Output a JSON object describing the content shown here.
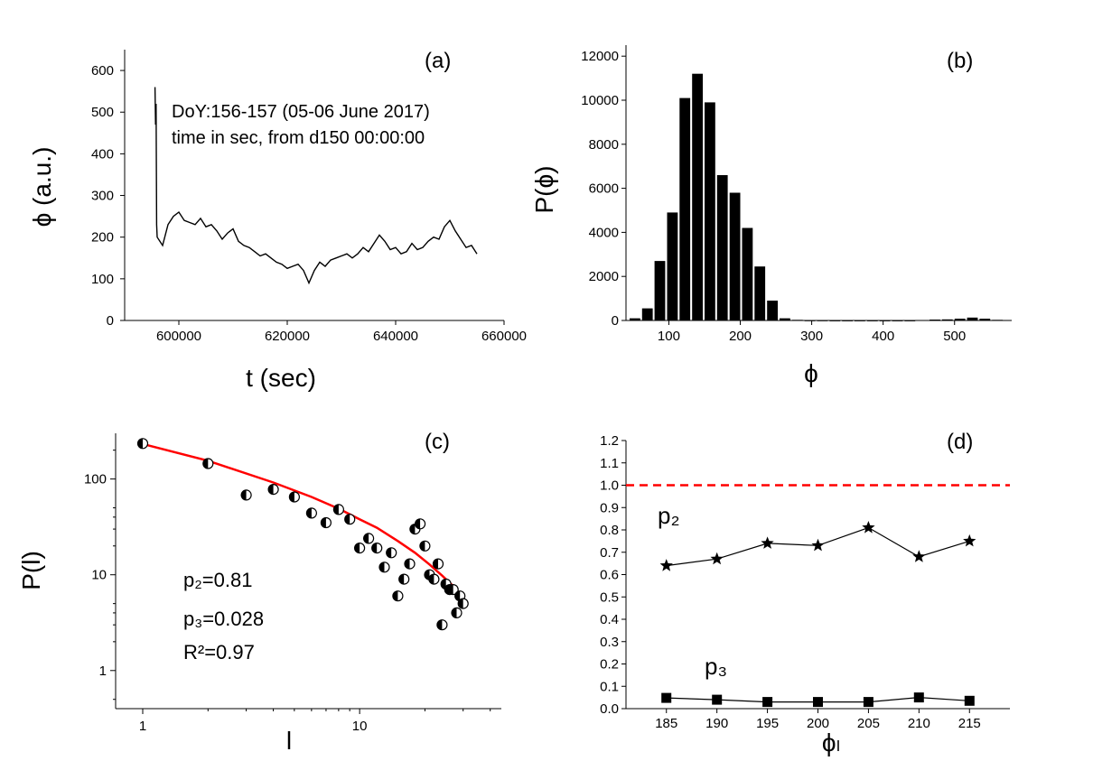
{
  "chart_data": [
    {
      "panel_label": "(a)",
      "type": "line",
      "xlabel": "t (sec)",
      "ylabel": "ϕ (a.u.)",
      "xlim": [
        590000,
        660000
      ],
      "ylim": [
        0,
        650
      ],
      "xticks": [
        600000,
        620000,
        640000,
        660000
      ],
      "yticks": [
        0,
        100,
        200,
        300,
        400,
        500,
        600
      ],
      "annotations": [
        "DoY:156-157 (05-06 June 2017)",
        "time in sec, from d150 00:00:00"
      ],
      "series": [
        {
          "x": [
            595600,
            595700,
            595800,
            595900,
            596000,
            597000,
            598000,
            599000,
            600000,
            601000,
            602000,
            603000,
            604000,
            605000,
            606000,
            607000,
            608000,
            609000,
            610000,
            611000,
            612000,
            613000,
            614000,
            615000,
            616000,
            617000,
            618000,
            619000,
            620000,
            621000,
            622000,
            623000,
            624000,
            625000,
            626000,
            627000,
            628000,
            629000,
            630000,
            631000,
            632000,
            633000,
            634000,
            635000,
            636000,
            637000,
            638000,
            639000,
            640000,
            641000,
            642000,
            643000,
            644000,
            645000,
            646000,
            647000,
            648000,
            649000,
            650000,
            651000,
            652000,
            653000,
            654000,
            655000
          ],
          "y": [
            560,
            470,
            520,
            230,
            200,
            180,
            230,
            250,
            260,
            240,
            235,
            230,
            245,
            225,
            230,
            215,
            195,
            210,
            220,
            190,
            180,
            175,
            165,
            155,
            160,
            150,
            140,
            135,
            125,
            130,
            135,
            120,
            90,
            120,
            140,
            130,
            145,
            150,
            155,
            160,
            150,
            160,
            175,
            165,
            185,
            205,
            190,
            170,
            175,
            160,
            165,
            185,
            170,
            175,
            190,
            200,
            195,
            225,
            240,
            215,
            195,
            175,
            180,
            160
          ]
        }
      ]
    },
    {
      "panel_label": "(b)",
      "type": "bar",
      "xlabel": "ϕ",
      "ylabel": "P(ϕ)",
      "xlim": [
        40,
        580
      ],
      "ylim": [
        0,
        12500
      ],
      "xticks": [
        100,
        200,
        300,
        400,
        500
      ],
      "yticks": [
        0,
        2000,
        4000,
        6000,
        8000,
        10000,
        12000
      ],
      "bin_width": 17.5,
      "x": [
        52.5,
        70,
        87.5,
        105,
        122.5,
        140,
        157.5,
        175,
        192.5,
        210,
        227.5,
        245,
        262.5,
        280,
        297.5,
        315,
        332.5,
        350,
        367.5,
        385,
        402.5,
        420,
        437.5,
        455,
        472.5,
        490,
        507.5,
        525,
        542.5,
        560
      ],
      "values": [
        100,
        550,
        2700,
        4900,
        10100,
        11200,
        9900,
        6600,
        5800,
        4200,
        2450,
        900,
        100,
        30,
        10,
        10,
        5,
        5,
        5,
        5,
        5,
        5,
        5,
        20,
        40,
        50,
        80,
        130,
        80,
        30
      ]
    },
    {
      "panel_label": "(c)",
      "type": "scatter",
      "xlabel": "l",
      "ylabel": "P(l)",
      "xscale": "log",
      "yscale": "log",
      "xlim": [
        0.75,
        45
      ],
      "ylim": [
        0.4,
        300
      ],
      "xticks": [
        1,
        10
      ],
      "yticks": [
        1,
        10,
        100
      ],
      "annotations": [
        "p₂=0.81",
        "p₃=0.028",
        "R²=0.97"
      ],
      "series": [
        {
          "name": "",
          "x": [
            1,
            2,
            3,
            4,
            5,
            6,
            7,
            8,
            9,
            10,
            11,
            12,
            13,
            14,
            15,
            16,
            17,
            18,
            19,
            20,
            21,
            22,
            23,
            24,
            25,
            26,
            27,
            28,
            29,
            30
          ],
          "y": [
            235,
            145,
            68,
            78,
            65,
            44,
            35,
            48,
            38,
            19,
            24,
            19,
            12,
            17,
            6,
            9,
            13,
            30,
            34,
            20,
            10,
            9,
            13,
            3,
            8,
            7,
            7,
            4,
            6,
            5
          ]
        },
        {
          "name": "",
          "type": "line",
          "color": "#ff0000",
          "x": [
            1,
            2,
            4,
            6,
            8,
            10,
            12,
            15,
            18,
            21,
            24,
            27,
            30
          ],
          "y": [
            232,
            155,
            92,
            65,
            49,
            38,
            31,
            22.5,
            17,
            12.8,
            9.8,
            7.6,
            5.8
          ]
        }
      ]
    },
    {
      "panel_label": "(d)",
      "type": "line",
      "xlabel": "ϕₗ",
      "ylabel": "",
      "xlim": [
        181,
        219
      ],
      "ylim": [
        0,
        1.2
      ],
      "xticks": [
        185,
        190,
        195,
        200,
        205,
        210,
        215
      ],
      "yticks": [
        0.0,
        0.1,
        0.2,
        0.3,
        0.4,
        0.5,
        0.6,
        0.7,
        0.8,
        0.9,
        1.0,
        1.1,
        1.2
      ],
      "ytick_labels": [
        "0.0",
        "0.1",
        "0.2",
        "0.3",
        "0.4",
        "0.5",
        "0.6",
        "0.7",
        "0.8",
        "0.9",
        "1.0",
        "1.1",
        "1.2"
      ],
      "reference_line": {
        "y": 1.0,
        "color": "#ff0000",
        "style": "dashed"
      },
      "series": [
        {
          "name": "p₂",
          "marker": "star",
          "x": [
            185,
            190,
            195,
            200,
            205,
            210,
            215
          ],
          "y": [
            0.64,
            0.67,
            0.74,
            0.73,
            0.81,
            0.68,
            0.75
          ]
        },
        {
          "name": "p₃",
          "marker": "square",
          "x": [
            185,
            190,
            195,
            200,
            205,
            210,
            215
          ],
          "y": [
            0.048,
            0.04,
            0.03,
            0.03,
            0.03,
            0.05,
            0.035
          ]
        }
      ]
    }
  ]
}
